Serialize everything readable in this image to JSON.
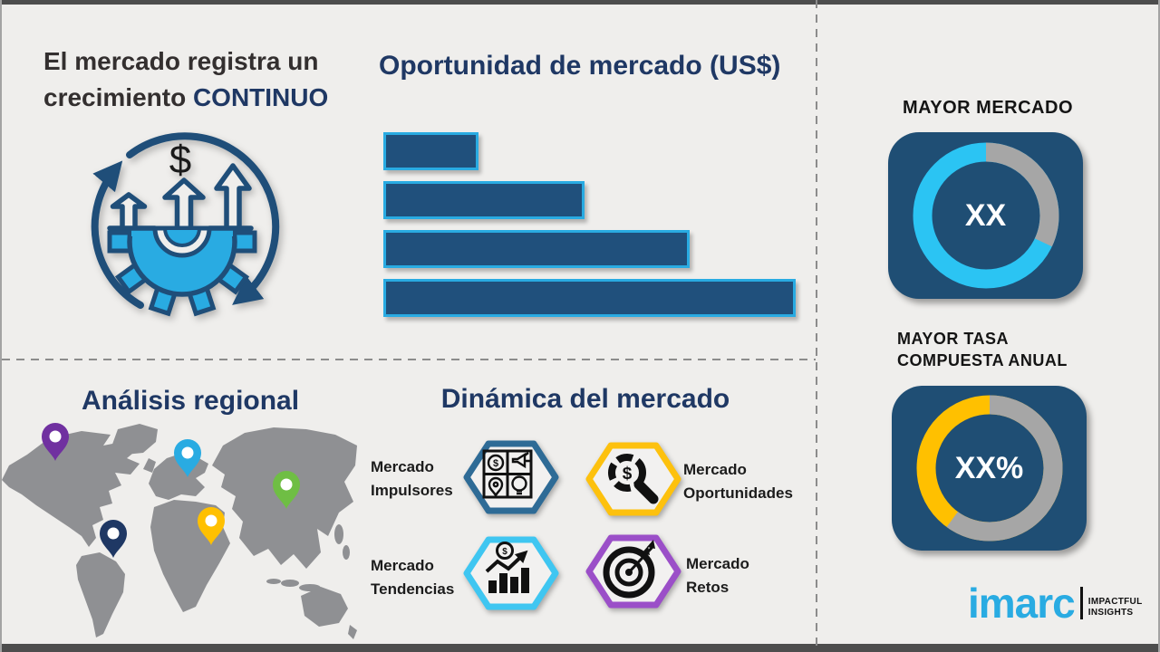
{
  "growth": {
    "title_line1": "El mercado registra un",
    "title_line2_prefix": "crecimiento ",
    "title_line2_accent": "CONTINUO",
    "icon": "growth-gear-arrows-icon",
    "icon_dollar": "$"
  },
  "opportunity": {
    "title": "Oportunidad de mercado (US$)"
  },
  "right_panel": {
    "largest_market_label": "MAYOR MERCADO",
    "largest_cagr_label_line1": "MAYOR  TASA",
    "largest_cagr_label_line2": "COMPUESTA ANUAL"
  },
  "chart_data": [
    {
      "id": "market_opportunity",
      "type": "bar",
      "title": "Oportunidad de mercado (US$)",
      "orientation": "horizontal",
      "categories": [
        "",
        "",
        "",
        ""
      ],
      "values_relative_pct": [
        22,
        48,
        74,
        100
      ],
      "bar_color": "#20507c",
      "bar_border": "#29abe2",
      "grid": false,
      "note": "unlabeled placeholder bars, ascending"
    },
    {
      "id": "mayor_mercado",
      "type": "donut",
      "title": "MAYOR MERCADO",
      "center_label": "XX",
      "segments": [
        {
          "name": "highlight",
          "color": "#2bc4f3",
          "pct": 68
        },
        {
          "name": "remainder",
          "color": "#a6a6a6",
          "pct": 32
        }
      ],
      "card_color": "#1f4e74"
    },
    {
      "id": "mayor_tasa_compuesta_anual",
      "type": "donut",
      "title": "MAYOR TASA COMPUESTA ANUAL",
      "center_label": "XX%",
      "segments": [
        {
          "name": "highlight",
          "color": "#ffc000",
          "pct": 40
        },
        {
          "name": "remainder",
          "color": "#a6a6a6",
          "pct": 60
        }
      ],
      "card_color": "#1f4e74"
    }
  ],
  "regional": {
    "title": "Análisis regional",
    "map_icon": "world-map",
    "map_color": "#8f9093",
    "pins": [
      {
        "name": "north-america-pin",
        "color": "#7030a0"
      },
      {
        "name": "europe-pin",
        "color": "#29abe2"
      },
      {
        "name": "east-asia-pin",
        "color": "#6fbe44"
      },
      {
        "name": "middle-east-africa-pin",
        "color": "#ffc000"
      },
      {
        "name": "south-america-pin",
        "color": "#1f3864"
      }
    ]
  },
  "dynamics": {
    "title": "Dinámica del mercado",
    "items": [
      {
        "label_line1": "Mercado",
        "label_line2": "Impulsores",
        "icon": "puzzle-pieces-icon",
        "border_color": "#2e6b96"
      },
      {
        "label_line1": "Mercado",
        "label_line2": "Oportunidades",
        "icon": "magnifier-dollar-icon",
        "border_color": "#fdc10e"
      },
      {
        "label_line1": "Mercado",
        "label_line2": "Tendencias",
        "icon": "trend-chart-icon",
        "border_color": "#3fc6f1"
      },
      {
        "label_line1": "Mercado",
        "label_line2": "Retos",
        "icon": "target-dart-icon",
        "border_color": "#9b4fc8"
      }
    ]
  },
  "brand": {
    "name": "imarc",
    "tagline_line1": "IMPACTFUL",
    "tagline_line2": "INSIGHTS",
    "accent_color": "#29abe2"
  }
}
